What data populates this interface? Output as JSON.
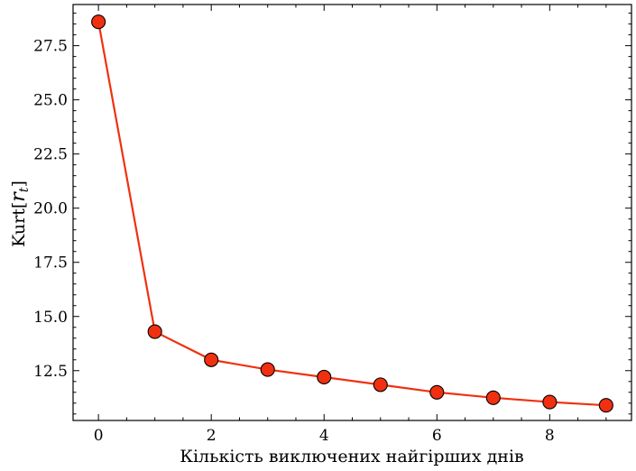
{
  "chart_data": {
    "type": "line",
    "title": "",
    "xlabel": "Кількість виключених найгірших днів",
    "ylabel_prefix": "Kurt[",
    "ylabel_var": "r",
    "ylabel_sub": "t",
    "ylabel_suffix": "]",
    "x": [
      0,
      1,
      2,
      3,
      4,
      5,
      6,
      7,
      8,
      9
    ],
    "series": [
      {
        "values": [
          28.6,
          14.3,
          13.0,
          12.55,
          12.2,
          11.85,
          11.5,
          11.25,
          11.05,
          10.9
        ]
      }
    ],
    "xlim": [
      -0.45,
      9.45
    ],
    "ylim": [
      10.2,
      29.4
    ],
    "xticks": [
      0,
      2,
      4,
      6,
      8
    ],
    "xtick_labels": [
      "0",
      "2",
      "4",
      "6",
      "8"
    ],
    "yticks": [
      12.5,
      15.0,
      17.5,
      20.0,
      22.5,
      25.0,
      27.5
    ],
    "ytick_labels": [
      "12.5",
      "15.0",
      "17.5",
      "20.0",
      "22.5",
      "25.0",
      "27.5"
    ],
    "grid": false,
    "line_color": "#f03010",
    "marker_fill": "#f03010",
    "marker_edge": "#000000"
  }
}
